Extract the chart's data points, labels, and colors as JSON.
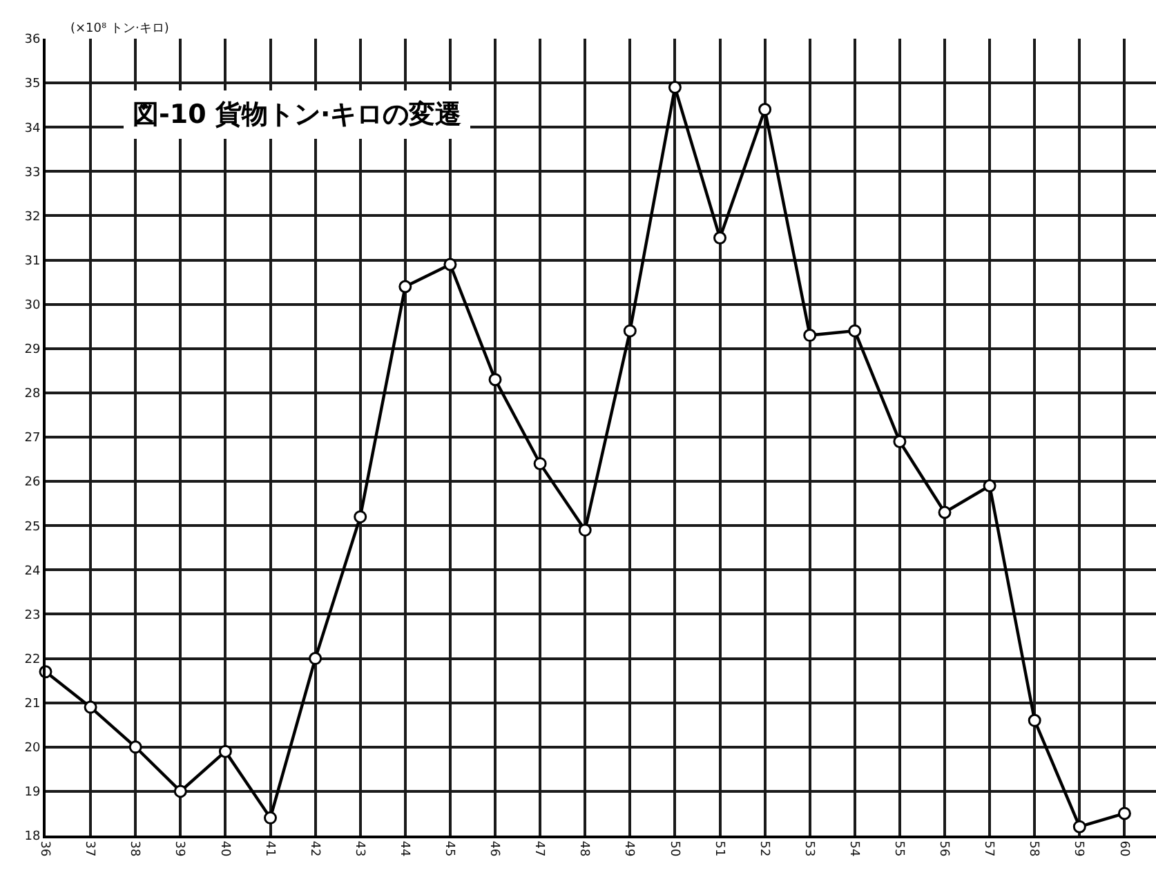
{
  "chart_data": {
    "type": "line",
    "title": "図-10 貨物トン·キロの変遷",
    "ylabel": "(×10⁸ トン·キロ)",
    "x": [
      36,
      37,
      38,
      39,
      40,
      41,
      42,
      43,
      44,
      45,
      46,
      47,
      48,
      49,
      50,
      51,
      52,
      53,
      54,
      55,
      56,
      57,
      58,
      59,
      60
    ],
    "series": [
      {
        "color": "#000000",
        "values": [
          21.7,
          20.9,
          20.0,
          19.0,
          19.9,
          18.4,
          22.0,
          25.2,
          30.4,
          30.9,
          28.3,
          26.4,
          24.9,
          29.4,
          34.9,
          31.5,
          34.4,
          29.3,
          29.4,
          26.9,
          25.3,
          25.9,
          20.6,
          18.2,
          18.5
        ]
      }
    ],
    "xlim": [
      36,
      60.7
    ],
    "ylim": [
      18,
      36
    ],
    "xticks": [
      36,
      37,
      38,
      39,
      40,
      41,
      42,
      43,
      44,
      45,
      46,
      47,
      48,
      49,
      50,
      51,
      52,
      53,
      54,
      55,
      56,
      57,
      58,
      59,
      60
    ],
    "yticks": [
      18,
      19,
      20,
      21,
      22,
      23,
      24,
      25,
      26,
      27,
      28,
      29,
      30,
      31,
      32,
      33,
      34,
      35,
      36
    ],
    "grid": true,
    "marker": "circle",
    "line_style": "solid"
  }
}
